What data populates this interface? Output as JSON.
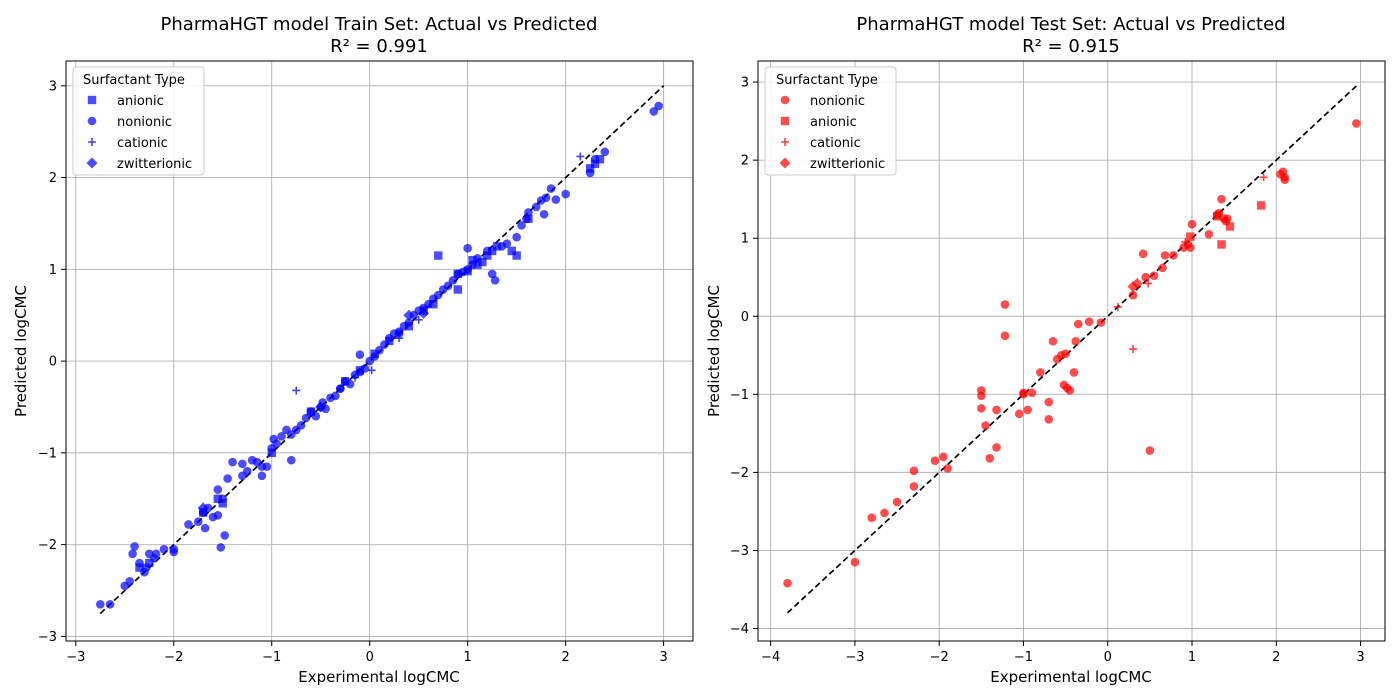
{
  "charts": [
    {
      "title_line1": "PharmaHGT model Train Set: Actual vs Predicted",
      "title_line2": "R² = 0.991",
      "xlabel": "Experimental logCMC",
      "ylabel": "Predicted logCMC",
      "legend_title": "Surfactant Type",
      "legend": [
        "anionic",
        "nonionic",
        "cationic",
        "zwitterionic"
      ]
    },
    {
      "title_line1": "PharmaHGT model Test Set: Actual vs Predicted",
      "title_line2": "R² = 0.915",
      "xlabel": "Experimental logCMC",
      "ylabel": "Predicted logCMC",
      "legend_title": "Surfactant Type",
      "legend": [
        "nonionic",
        "anionic",
        "cationic",
        "zwitterionic"
      ]
    }
  ],
  "chart_data": [
    {
      "type": "scatter",
      "title": "PharmaHGT model Train Set: Actual vs Predicted\nR² = 0.991",
      "xlabel": "Experimental logCMC",
      "ylabel": "Predicted logCMC",
      "xlim": [
        -3.1,
        3.3
      ],
      "ylim": [
        -3.05,
        3.27
      ],
      "xticks": [
        -3,
        -2,
        -1,
        0,
        1,
        2,
        3
      ],
      "yticks": [
        -3,
        -2,
        -1,
        0,
        1,
        2,
        3
      ],
      "grid": true,
      "legend_placement": "top-left",
      "legend_title": "Surfactant Type",
      "color": "#0000ff",
      "reference_line": {
        "x": [
          -2.75,
          3.0
        ],
        "y": [
          -2.75,
          3.0
        ],
        "style": "dashed",
        "color": "#000000"
      },
      "series": [
        {
          "name": "anionic",
          "marker": "square",
          "x": [
            0.7,
            1.05,
            1.1,
            1.2,
            1.3,
            1.45,
            1.5,
            0.9,
            1.0,
            1.15,
            1.25,
            1.62,
            2.25,
            2.3,
            2.35,
            -1.55,
            -1.5,
            -1.7,
            -2.35,
            -2.25,
            0.55,
            0.65,
            0.4,
            0.2,
            0.05,
            -0.1,
            -0.25,
            -0.6,
            -1.0,
            0.9
          ],
          "y": [
            1.15,
            1.1,
            1.05,
            1.15,
            1.25,
            1.2,
            1.15,
            0.95,
            0.98,
            1.08,
            1.2,
            1.55,
            2.1,
            2.15,
            2.2,
            -1.5,
            -1.55,
            -1.65,
            -2.25,
            -2.2,
            0.55,
            0.62,
            0.38,
            0.22,
            0.08,
            -0.1,
            -0.22,
            -0.55,
            -1.0,
            0.78
          ]
        },
        {
          "name": "nonionic",
          "marker": "circle",
          "x": [
            -2.75,
            -2.65,
            -2.5,
            -2.45,
            -2.42,
            -2.4,
            -2.35,
            -2.3,
            -2.28,
            -2.25,
            -2.2,
            -2.18,
            -2.1,
            -2.0,
            -2.0,
            -1.85,
            -1.75,
            -1.7,
            -1.68,
            -1.65,
            -1.6,
            -1.55,
            -1.55,
            -1.5,
            -1.48,
            -1.45,
            -1.4,
            -1.3,
            -1.3,
            -1.25,
            -1.2,
            -1.15,
            -1.1,
            -1.05,
            -1.0,
            -0.98,
            -0.95,
            -0.9,
            -0.85,
            -0.8,
            -0.75,
            -0.7,
            -0.65,
            -0.6,
            -0.55,
            -0.5,
            -0.48,
            -0.45,
            -0.4,
            -0.35,
            -0.3,
            -0.25,
            -0.2,
            -0.15,
            -0.1,
            -0.05,
            0.0,
            0.05,
            0.1,
            0.15,
            0.2,
            0.25,
            0.3,
            0.35,
            0.4,
            0.45,
            0.5,
            0.55,
            0.6,
            0.65,
            0.7,
            0.75,
            0.8,
            0.85,
            0.9,
            0.95,
            1.0,
            1.0,
            1.05,
            1.1,
            1.2,
            1.25,
            1.28,
            1.35,
            1.4,
            1.5,
            1.55,
            1.6,
            1.62,
            1.7,
            1.75,
            1.78,
            1.8,
            1.85,
            1.9,
            2.0,
            2.25,
            2.3,
            2.4,
            2.9,
            2.95,
            -0.1,
            -0.8,
            -1.52,
            -1.1,
            -0.3,
            0.3
          ],
          "y": [
            -2.65,
            -2.65,
            -2.45,
            -2.4,
            -2.1,
            -2.02,
            -2.2,
            -2.3,
            -2.25,
            -2.1,
            -2.15,
            -2.1,
            -2.05,
            -2.08,
            -2.05,
            -1.78,
            -1.75,
            -1.65,
            -1.82,
            -1.6,
            -1.7,
            -1.4,
            -1.68,
            -1.5,
            -1.9,
            -1.28,
            -1.1,
            -1.12,
            -1.25,
            -1.2,
            -1.08,
            -1.1,
            -1.25,
            -1.15,
            -0.95,
            -0.85,
            -0.9,
            -0.82,
            -0.75,
            -0.8,
            -0.75,
            -0.7,
            -0.62,
            -0.55,
            -0.6,
            -0.5,
            -0.45,
            -0.52,
            -0.4,
            -0.38,
            -0.3,
            -0.22,
            -0.25,
            -0.15,
            -0.12,
            -0.08,
            0.0,
            0.05,
            0.12,
            0.18,
            0.25,
            0.3,
            0.32,
            0.38,
            0.42,
            0.5,
            0.55,
            0.58,
            0.62,
            0.68,
            0.72,
            0.78,
            0.82,
            0.88,
            0.95,
            0.97,
            1.0,
            1.23,
            1.05,
            1.12,
            1.2,
            0.95,
            0.88,
            1.25,
            1.28,
            1.35,
            1.48,
            1.55,
            1.62,
            1.68,
            1.75,
            1.6,
            1.78,
            1.88,
            1.76,
            1.82,
            2.05,
            2.2,
            2.28,
            2.72,
            2.78,
            0.07,
            -1.08,
            -2.03,
            -1.15,
            -0.3,
            0.3
          ]
        },
        {
          "name": "cationic",
          "marker": "plus",
          "x": [
            -0.75,
            0.02,
            2.15,
            0.5,
            -0.15,
            0.3
          ],
          "y": [
            -0.32,
            -0.1,
            2.23,
            0.45,
            -0.18,
            0.25
          ]
        },
        {
          "name": "zwitterionic",
          "marker": "diamond",
          "x": [
            -1.7,
            0.4,
            0.55,
            -0.5
          ],
          "y": [
            -1.6,
            0.5,
            0.52,
            -0.5
          ]
        }
      ]
    },
    {
      "type": "scatter",
      "title": "PharmaHGT model Test Set: Actual vs Predicted\nR² = 0.915",
      "xlabel": "Experimental logCMC",
      "ylabel": "Predicted logCMC",
      "xlim": [
        -4.15,
        3.29
      ],
      "ylim": [
        -4.16,
        3.27
      ],
      "xticks": [
        -4,
        -3,
        -2,
        -1,
        0,
        1,
        2,
        3
      ],
      "yticks": [
        -4,
        -3,
        -2,
        -1,
        0,
        1,
        2,
        3
      ],
      "grid": true,
      "legend_placement": "top-left",
      "legend_title": "Surfactant Type",
      "color": "#ff0000",
      "reference_line": {
        "x": [
          -3.8,
          2.95
        ],
        "y": [
          -3.8,
          2.95
        ],
        "style": "dashed",
        "color": "#000000"
      },
      "series": [
        {
          "name": "nonionic",
          "marker": "circle",
          "x": [
            -3.8,
            -3.0,
            -2.8,
            -2.65,
            -2.5,
            -2.3,
            -2.3,
            -2.05,
            -1.95,
            -1.9,
            -1.5,
            -1.5,
            -1.5,
            -1.45,
            -1.4,
            -1.32,
            -1.32,
            -1.22,
            -1.22,
            -1.05,
            -1.0,
            -0.95,
            -0.9,
            -0.8,
            -0.7,
            -0.7,
            -0.65,
            -0.6,
            -0.55,
            -0.52,
            -0.5,
            -0.48,
            -0.45,
            -0.4,
            -0.38,
            -0.35,
            -0.22,
            -0.08,
            0.3,
            0.42,
            0.45,
            0.5,
            0.55,
            0.65,
            0.68,
            0.78,
            0.9,
            0.95,
            0.98,
            1.0,
            1.2,
            1.3,
            1.32,
            1.35,
            1.38,
            1.4,
            1.42,
            2.05,
            2.08,
            2.1,
            2.1,
            2.95,
            -1.0
          ],
          "y": [
            -3.42,
            -3.15,
            -2.58,
            -2.52,
            -2.38,
            -2.18,
            -1.98,
            -1.85,
            -1.8,
            -1.95,
            -1.18,
            -1.02,
            -0.95,
            -1.4,
            -1.82,
            -1.68,
            -1.2,
            0.15,
            -0.25,
            -1.25,
            -1.0,
            -1.2,
            -0.98,
            -0.72,
            -1.1,
            -1.32,
            -0.32,
            -0.55,
            -0.5,
            -0.88,
            -0.48,
            -0.92,
            -0.95,
            -0.72,
            -0.32,
            -0.1,
            -0.07,
            -0.08,
            0.27,
            0.8,
            0.5,
            -1.72,
            0.52,
            0.62,
            0.78,
            0.78,
            0.88,
            0.92,
            0.88,
            1.18,
            1.05,
            1.3,
            1.32,
            1.5,
            1.25,
            1.22,
            1.25,
            1.82,
            1.85,
            1.78,
            1.75,
            2.47,
            -0.98
          ]
        },
        {
          "name": "anionic",
          "marker": "square",
          "x": [
            0.98,
            1.35,
            1.82,
            1.45,
            1.3
          ],
          "y": [
            1.02,
            0.92,
            1.42,
            1.15,
            1.28
          ]
        },
        {
          "name": "cationic",
          "marker": "plus",
          "x": [
            0.3,
            0.12,
            0.48,
            0.92,
            1.85
          ],
          "y": [
            -0.42,
            0.12,
            0.42,
            0.95,
            1.78
          ]
        },
        {
          "name": "zwitterionic",
          "marker": "diamond",
          "x": [
            0.3,
            0.35
          ],
          "y": [
            0.38,
            0.42
          ]
        }
      ]
    }
  ]
}
